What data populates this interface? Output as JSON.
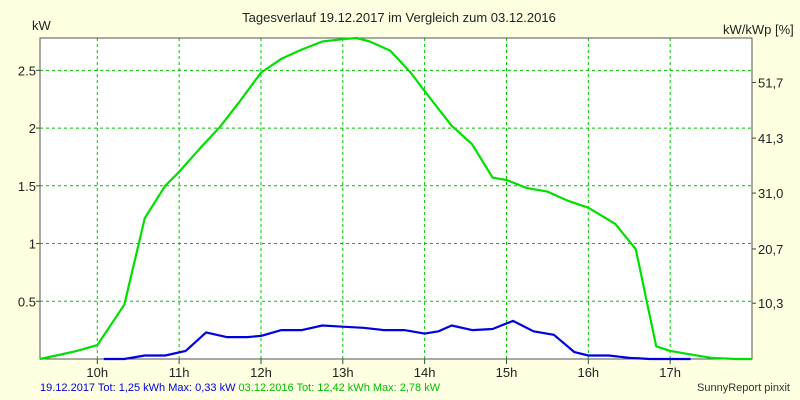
{
  "chart_data": {
    "type": "line",
    "title": "Tagesverlauf 19.12.2017 im Vergleich zum 03.12.2016",
    "ylabel_left": "kW",
    "ylabel_right": "kW/kWp [%]",
    "xlim": [
      9.3,
      18.0
    ],
    "ylim": [
      0,
      2.78
    ],
    "x_ticks": [
      10,
      11,
      12,
      13,
      14,
      15,
      16,
      17
    ],
    "x_tick_labels": [
      "10h",
      "11h",
      "12h",
      "13h",
      "14h",
      "15h",
      "16h",
      "17h"
    ],
    "y_ticks": [
      0.5,
      1,
      1.5,
      2,
      2.5
    ],
    "y_tick_labels": [
      "0.5",
      "1",
      "1.5",
      "2",
      "2.5"
    ],
    "y2_ticks": [
      0.483,
      0.953,
      1.437,
      1.913,
      2.395
    ],
    "y2_tick_labels": [
      "10,3",
      "20,7",
      "31,0",
      "41,3",
      "51,7"
    ],
    "grid": true,
    "series": [
      {
        "name": "03.12.2016",
        "color": "#00e000",
        "x": [
          9.3,
          9.5,
          9.75,
          10.0,
          10.33,
          10.58,
          10.83,
          11.0,
          11.25,
          11.5,
          11.75,
          12.0,
          12.25,
          12.5,
          12.75,
          13.0,
          13.17,
          13.33,
          13.58,
          13.83,
          14.0,
          14.33,
          14.58,
          14.83,
          15.0,
          15.25,
          15.5,
          15.75,
          16.0,
          16.33,
          16.58,
          16.83,
          17.0,
          17.25,
          17.5,
          17.8,
          18.0
        ],
        "values": [
          0.0,
          0.03,
          0.07,
          0.12,
          0.47,
          1.22,
          1.5,
          1.62,
          1.82,
          2.01,
          2.24,
          2.48,
          2.6,
          2.68,
          2.75,
          2.77,
          2.78,
          2.75,
          2.67,
          2.48,
          2.32,
          2.02,
          1.86,
          1.57,
          1.55,
          1.48,
          1.45,
          1.37,
          1.31,
          1.17,
          0.95,
          0.11,
          0.07,
          0.04,
          0.01,
          0.0,
          0.0
        ]
      },
      {
        "name": "19.12.2017",
        "color": "#0000e0",
        "x": [
          10.08,
          10.33,
          10.58,
          10.83,
          11.08,
          11.33,
          11.58,
          11.83,
          12.0,
          12.25,
          12.5,
          12.75,
          13.0,
          13.25,
          13.5,
          13.75,
          14.0,
          14.17,
          14.33,
          14.58,
          14.83,
          15.08,
          15.33,
          15.58,
          15.83,
          16.0,
          16.25,
          16.5,
          16.75,
          17.0,
          17.25
        ],
        "values": [
          0.0,
          0.0,
          0.03,
          0.03,
          0.07,
          0.23,
          0.19,
          0.19,
          0.2,
          0.25,
          0.25,
          0.29,
          0.28,
          0.27,
          0.25,
          0.25,
          0.22,
          0.24,
          0.29,
          0.25,
          0.26,
          0.33,
          0.24,
          0.21,
          0.06,
          0.03,
          0.03,
          0.01,
          0.0,
          0.0,
          0.0
        ]
      }
    ]
  },
  "footer": {
    "blue_text": "19.12.2017 Tot: 1,25 kWh Max: 0,33 kW",
    "green_text": "03.12.2016 Tot: 12,42 kWh Max: 2,78 kW",
    "credit": "SunnyReport pinxit",
    "blue_color": "#0000e0",
    "green_color": "#00c000"
  }
}
